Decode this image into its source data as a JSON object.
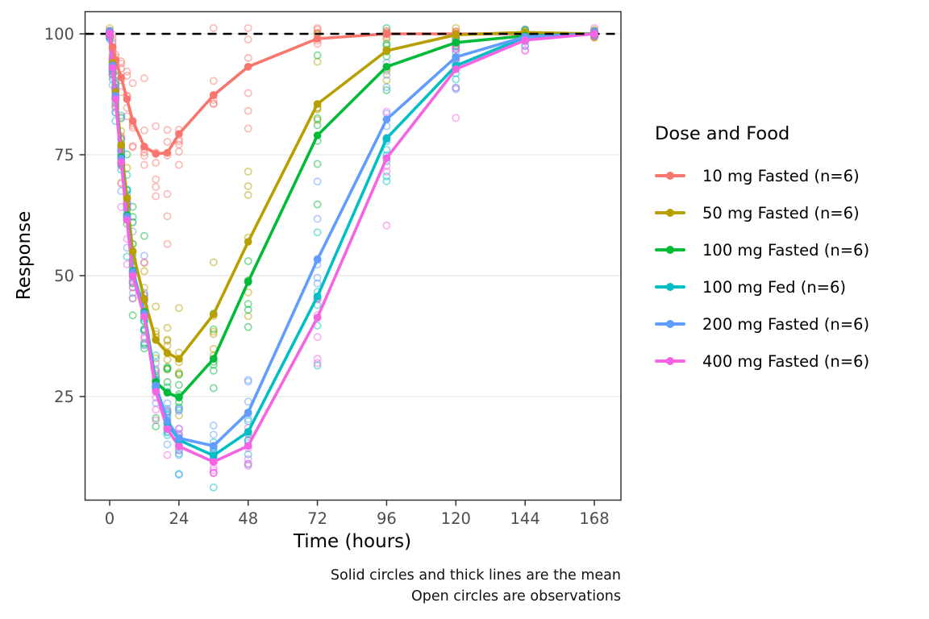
{
  "figure": {
    "background": "#FFFFFF",
    "caption_line1": "Solid circles and thick lines are the mean",
    "caption_line2": "Open circles are observations"
  },
  "legend": {
    "title": "Dose and Food",
    "position": "right",
    "entries": [
      {
        "label": "10 mg Fasted (n=6)",
        "color": "#F8766D"
      },
      {
        "label": "50 mg Fasted (n=6)",
        "color": "#B79F00"
      },
      {
        "label": "100 mg Fasted (n=6)",
        "color": "#00BA38"
      },
      {
        "label": "100 mg Fed (n=6)",
        "color": "#00BFC4"
      },
      {
        "label": "200 mg Fasted (n=6)",
        "color": "#619CFF"
      },
      {
        "label": "400 mg Fasted (n=6)",
        "color": "#F564E3"
      }
    ]
  },
  "chart_data": {
    "type": "line",
    "title": "",
    "xlabel": "Time (hours)",
    "ylabel": "Response",
    "x_ticks": [
      0,
      24,
      48,
      72,
      96,
      120,
      144,
      168
    ],
    "y_ticks": [
      25,
      50,
      75,
      100
    ],
    "xlim": [
      -9,
      177
    ],
    "ylim": [
      3.5,
      104.5
    ],
    "grid": "horizontal-major-only",
    "gridline_color": "#EBEBEB",
    "panel_border_color": "#333333",
    "tick_label_color": "#4D4D4D",
    "reference_line": {
      "y": 100,
      "style": "dashed",
      "color": "#000000"
    },
    "x": [
      0,
      1,
      2,
      4,
      6,
      8,
      12,
      16,
      20,
      24,
      36,
      48,
      72,
      96,
      120,
      144,
      168
    ],
    "series": [
      {
        "name": "10 mg Fasted (n=6)",
        "color": "#F8766D",
        "n": 6,
        "mean": [
          100,
          97.3,
          94.6,
          91,
          86.5,
          82,
          76.7,
          75.2,
          75.4,
          79.3,
          87.3,
          93.2,
          99,
          100,
          100,
          100,
          100
        ],
        "obs_sd": [
          0.5,
          1,
          1.5,
          2.5,
          3.5,
          4.5,
          6,
          7,
          7,
          6,
          6.5,
          6,
          1.6,
          0.9,
          0.7,
          0.5,
          0.4
        ]
      },
      {
        "name": "50 mg Fasted (n=6)",
        "color": "#B79F00",
        "n": 6,
        "mean": [
          100,
          94,
          88,
          77,
          66,
          55,
          45.2,
          36.7,
          34,
          32.8,
          42,
          57,
          85.5,
          96.5,
          99.8,
          100.3,
          100
        ],
        "obs_sd": [
          0.5,
          1.5,
          2.5,
          4,
          4.5,
          5,
          5,
          4.5,
          4.5,
          4.5,
          5,
          8,
          7,
          2.5,
          1.2,
          0.7,
          0.4
        ]
      },
      {
        "name": "100 mg Fasted (n=6)",
        "color": "#00BA38",
        "n": 6,
        "mean": [
          100,
          93.3,
          87,
          74.5,
          62.5,
          51,
          42.5,
          28,
          25.8,
          24.8,
          32.8,
          48.7,
          79,
          93.2,
          98.2,
          99.6,
          100
        ],
        "obs_sd": [
          0.5,
          1.5,
          2.5,
          4,
          4.5,
          5,
          5,
          4,
          3.5,
          3.5,
          4,
          8,
          8,
          4,
          1.5,
          0.8,
          0.4
        ]
      },
      {
        "name": "100 mg Fed (n=6)",
        "color": "#00BFC4",
        "n": 6,
        "mean": [
          100,
          93.3,
          87,
          74,
          62,
          50.5,
          42,
          27,
          19.5,
          16,
          12.8,
          17.7,
          45.7,
          78.4,
          93.4,
          99.3,
          100
        ],
        "obs_sd": [
          0.5,
          1.5,
          2.5,
          4,
          4.5,
          5,
          5,
          4,
          3.5,
          3,
          2.5,
          3,
          8,
          8,
          3,
          1.2,
          0.4
        ]
      },
      {
        "name": "200 mg Fasted (n=6)",
        "color": "#619CFF",
        "n": 6,
        "mean": [
          100,
          93.5,
          87.2,
          74.2,
          62.2,
          50.8,
          42.2,
          27.3,
          20,
          16.4,
          14.8,
          21.7,
          53.3,
          82.3,
          95.2,
          99.4,
          100
        ],
        "obs_sd": [
          0.5,
          1.5,
          2.5,
          4,
          4.5,
          5,
          5,
          4,
          3.5,
          3,
          2.5,
          4,
          11,
          7,
          3.5,
          1.2,
          0.4
        ]
      },
      {
        "name": "400 mg Fasted (n=6)",
        "color": "#F564E3",
        "n": 6,
        "mean": [
          100,
          93,
          86.5,
          73.5,
          61.5,
          50,
          41.5,
          26,
          18.3,
          14.7,
          11.5,
          14.8,
          41.3,
          74.3,
          92.7,
          98.7,
          100
        ],
        "obs_sd": [
          0.5,
          1.5,
          2.5,
          4,
          4.5,
          5,
          5,
          4,
          3.5,
          2.8,
          2.5,
          3.5,
          10,
          10,
          4,
          1.5,
          0.4
        ]
      }
    ],
    "observations_note": "6 open-circle observations per group at each sample time, scattered around the group mean"
  }
}
